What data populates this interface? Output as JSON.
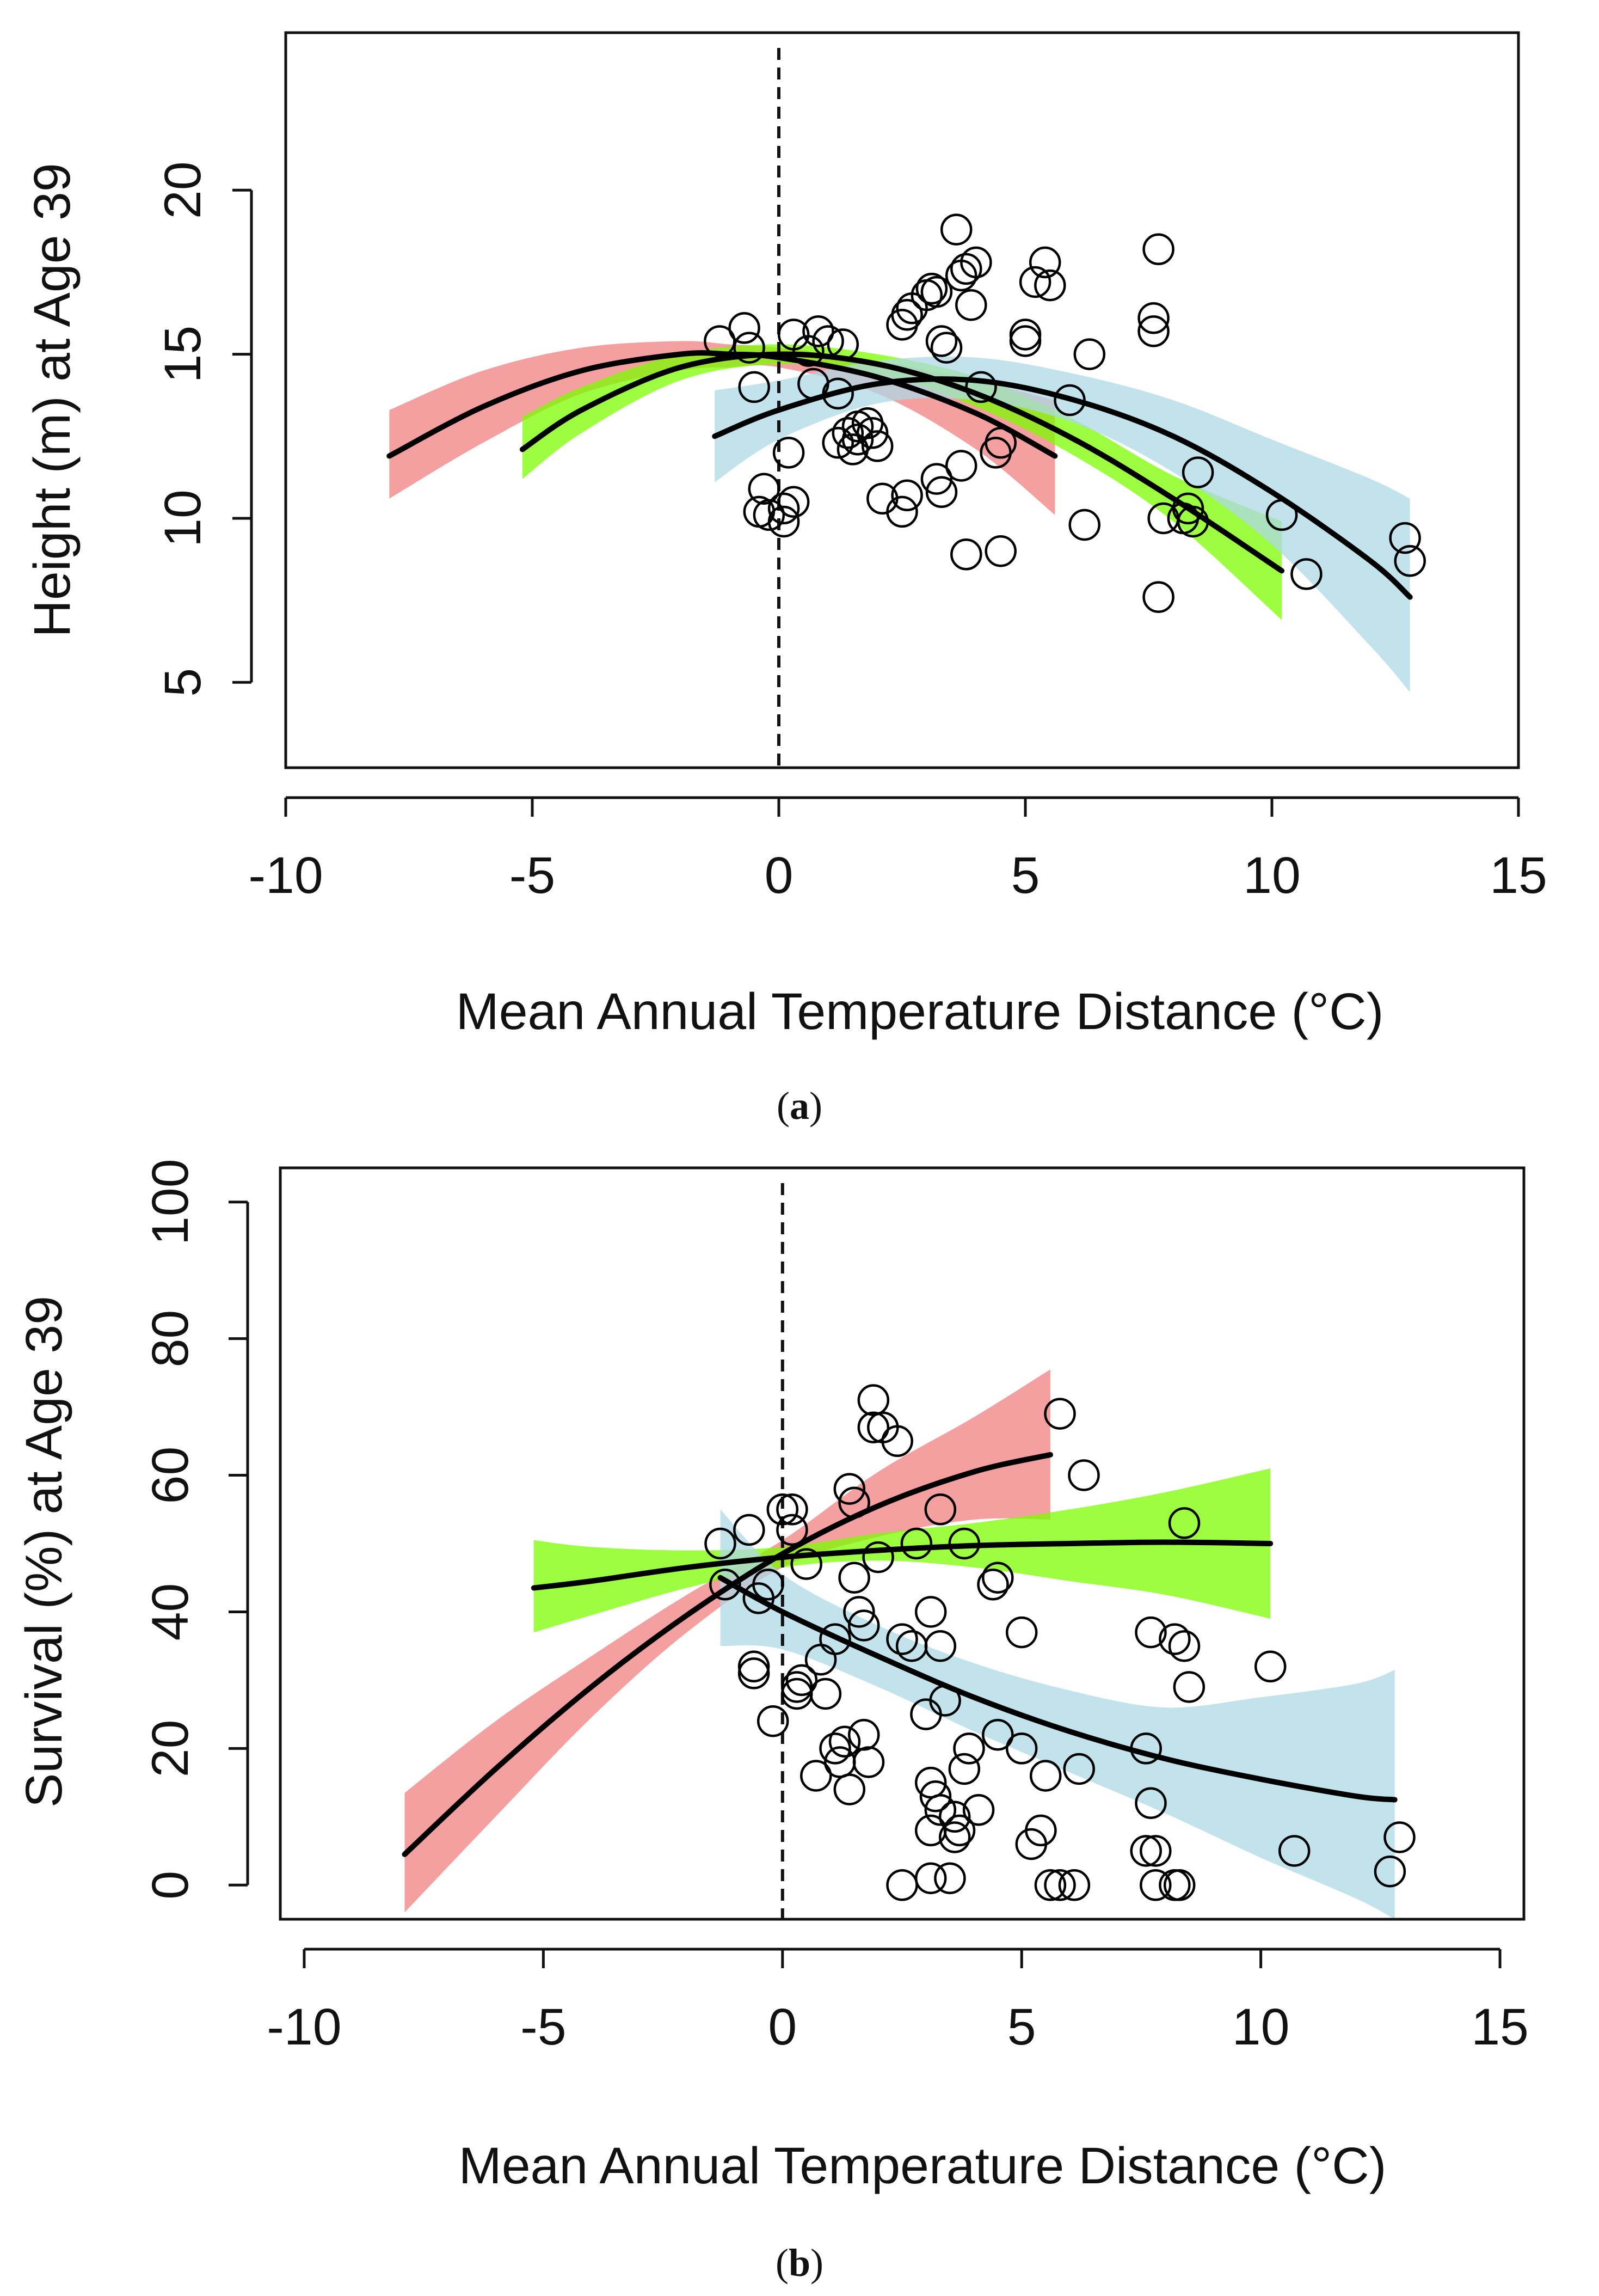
{
  "colors": {
    "red_band": "#F08080",
    "green_band": "#7CFC00",
    "blue_band": "#ADD8E6",
    "line": "#000000",
    "points": "#000000"
  },
  "chart_data": [
    {
      "id": "a",
      "panel_label_open": "(",
      "panel_label_letter": "a",
      "panel_label_close": ")",
      "type": "scatter",
      "xlabel": "Mean Annual Temperature Distance (°C)",
      "ylabel": "Height (m) at Age 39",
      "xlim": [
        -10,
        15
      ],
      "ylim": [
        2.4,
        24.8
      ],
      "xticks": [
        -10,
        -5,
        0,
        5,
        10,
        15
      ],
      "yticks": [
        5,
        10,
        15,
        20
      ],
      "xtick_labels": [
        "-10",
        "-5",
        "0",
        "5",
        "10",
        "15"
      ],
      "ytick_labels": [
        "5",
        "10",
        "15",
        "20"
      ],
      "reference_line_x": 0,
      "curves": [
        {
          "name": "red",
          "color": "#F08080",
          "x": [
            -7.9,
            -6,
            -4,
            -2,
            -1,
            0,
            2,
            4,
            5.6
          ],
          "y": [
            11.9,
            13.4,
            14.5,
            15.0,
            15.0,
            14.9,
            14.3,
            13.2,
            11.9
          ],
          "lower": [
            10.6,
            12.3,
            13.8,
            14.5,
            14.6,
            14.6,
            13.8,
            12.1,
            10.1
          ],
          "upper": [
            13.3,
            14.5,
            15.2,
            15.4,
            15.3,
            15.2,
            14.8,
            14.2,
            13.6
          ]
        },
        {
          "name": "green",
          "color": "#7CFC00",
          "x": [
            -5.2,
            -4,
            -2,
            0,
            2,
            4,
            6,
            8,
            10.2
          ],
          "y": [
            12.1,
            13.3,
            14.6,
            15.0,
            14.7,
            13.8,
            12.4,
            10.6,
            8.4
          ],
          "lower": [
            11.2,
            12.6,
            14.2,
            14.7,
            14.4,
            13.4,
            11.9,
            9.9,
            6.9
          ],
          "upper": [
            13.1,
            14.0,
            15.0,
            15.3,
            15.0,
            14.3,
            13.0,
            11.3,
            9.9
          ]
        },
        {
          "name": "blue",
          "color": "#ADD8E6",
          "x": [
            -1.3,
            0,
            2,
            4,
            6,
            8,
            10,
            12,
            12.8
          ],
          "y": [
            12.5,
            13.3,
            14.1,
            14.2,
            13.6,
            12.5,
            10.8,
            8.7,
            7.6
          ],
          "lower": [
            11.1,
            12.4,
            13.5,
            13.6,
            12.9,
            11.4,
            9.2,
            6.1,
            4.7
          ],
          "upper": [
            13.9,
            14.2,
            14.8,
            14.9,
            14.4,
            13.6,
            12.4,
            11.2,
            10.6
          ]
        }
      ],
      "points": [
        [
          -1.2,
          15.4
        ],
        [
          -0.7,
          15.8
        ],
        [
          -0.6,
          15.2
        ],
        [
          -0.5,
          14.0
        ],
        [
          -0.4,
          10.2
        ],
        [
          -0.3,
          10.9
        ],
        [
          -0.2,
          10.1
        ],
        [
          0.1,
          10.3
        ],
        [
          0.1,
          9.9
        ],
        [
          0.2,
          12.0
        ],
        [
          0.3,
          15.6
        ],
        [
          0.3,
          10.5
        ],
        [
          0.6,
          15.1
        ],
        [
          0.7,
          14.1
        ],
        [
          0.8,
          15.7
        ],
        [
          1.0,
          15.4
        ],
        [
          1.2,
          13.8
        ],
        [
          1.3,
          15.3
        ],
        [
          1.2,
          12.3
        ],
        [
          1.4,
          12.6
        ],
        [
          1.5,
          12.1
        ],
        [
          1.6,
          12.4
        ],
        [
          1.6,
          12.8
        ],
        [
          1.8,
          12.9
        ],
        [
          1.9,
          12.6
        ],
        [
          2.0,
          12.2
        ],
        [
          2.1,
          10.6
        ],
        [
          2.5,
          10.2
        ],
        [
          2.6,
          10.7
        ],
        [
          2.5,
          15.9
        ],
        [
          2.6,
          16.2
        ],
        [
          2.7,
          16.4
        ],
        [
          3.0,
          16.8
        ],
        [
          3.1,
          17.0
        ],
        [
          3.2,
          16.9
        ],
        [
          3.2,
          11.2
        ],
        [
          3.3,
          10.8
        ],
        [
          3.3,
          15.4
        ],
        [
          3.4,
          15.2
        ],
        [
          3.6,
          18.8
        ],
        [
          3.7,
          17.4
        ],
        [
          3.8,
          17.6
        ],
        [
          3.7,
          11.6
        ],
        [
          3.8,
          8.9
        ],
        [
          3.9,
          16.5
        ],
        [
          4.0,
          17.8
        ],
        [
          4.1,
          14.0
        ],
        [
          4.4,
          12.0
        ],
        [
          4.5,
          12.3
        ],
        [
          4.5,
          9.0
        ],
        [
          5.0,
          15.6
        ],
        [
          5.0,
          15.4
        ],
        [
          5.2,
          17.2
        ],
        [
          5.4,
          17.8
        ],
        [
          5.5,
          17.1
        ],
        [
          5.9,
          13.6
        ],
        [
          6.2,
          9.8
        ],
        [
          6.3,
          15.0
        ],
        [
          7.6,
          16.1
        ],
        [
          7.6,
          15.7
        ],
        [
          7.7,
          18.2
        ],
        [
          7.8,
          10.0
        ],
        [
          7.7,
          7.6
        ],
        [
          8.2,
          10.0
        ],
        [
          8.3,
          10.3
        ],
        [
          8.4,
          9.9
        ],
        [
          8.5,
          11.4
        ],
        [
          10.2,
          10.1
        ],
        [
          10.7,
          8.3
        ],
        [
          12.7,
          9.4
        ],
        [
          12.8,
          8.7
        ]
      ]
    },
    {
      "id": "b",
      "panel_label_open": "(",
      "panel_label_letter": "b",
      "panel_label_close": ")",
      "type": "scatter",
      "xlabel": "Mean Annual Temperature Distance (°C)",
      "ylabel": "Survival (%) at Age 39",
      "xlim": [
        -10.5,
        15.5
      ],
      "ylim": [
        -5,
        105
      ],
      "xticks": [
        -10,
        -5,
        0,
        5,
        10,
        15
      ],
      "yticks": [
        0,
        20,
        40,
        60,
        80,
        100
      ],
      "xtick_labels": [
        "-10",
        "-5",
        "0",
        "5",
        "10",
        "15"
      ],
      "ytick_labels": [
        "0",
        "20",
        "40",
        "60",
        "80",
        "100"
      ],
      "reference_line_x": 0,
      "curves": [
        {
          "name": "red",
          "color": "#F08080",
          "x": [
            -7.9,
            -6,
            -4,
            -2,
            0,
            2,
            4,
            5.6
          ],
          "y": [
            4.5,
            17.0,
            29.0,
            39.5,
            48.5,
            55.5,
            60.5,
            63.0
          ],
          "lower": [
            -4.0,
            10.0,
            24.5,
            37.0,
            46.5,
            51.0,
            53.5,
            53.5
          ],
          "upper": [
            13.5,
            24.0,
            33.5,
            42.5,
            50.5,
            60.5,
            68.5,
            75.5
          ]
        },
        {
          "name": "green",
          "color": "#7CFC00",
          "x": [
            -5.2,
            -4,
            -2,
            0,
            2,
            4,
            6,
            8,
            10.2
          ],
          "y": [
            43.5,
            44.5,
            46.5,
            48.0,
            49.0,
            49.7,
            50.0,
            50.2,
            50.0
          ],
          "lower": [
            37.0,
            39.5,
            43.5,
            46.5,
            47.5,
            46.5,
            44.5,
            42.5,
            39.0
          ],
          "upper": [
            50.5,
            49.5,
            49.0,
            49.5,
            51.5,
            53.0,
            55.0,
            57.5,
            61.0
          ]
        },
        {
          "name": "blue",
          "color": "#ADD8E6",
          "x": [
            -1.3,
            0,
            2,
            4,
            6,
            8,
            10,
            12,
            12.8
          ],
          "y": [
            45.0,
            40.0,
            33.5,
            27.5,
            22.5,
            18.5,
            15.5,
            13.0,
            12.5
          ],
          "lower": [
            35.0,
            34.5,
            29.0,
            22.5,
            16.5,
            10.5,
            4.0,
            -2.0,
            -5.0
          ],
          "upper": [
            55.0,
            45.5,
            38.0,
            32.5,
            28.5,
            26.0,
            27.5,
            29.5,
            31.5
          ]
        }
      ],
      "points": [
        [
          -1.3,
          50
        ],
        [
          -1.2,
          44
        ],
        [
          -0.7,
          52
        ],
        [
          -0.6,
          32
        ],
        [
          -0.6,
          31
        ],
        [
          -0.5,
          42
        ],
        [
          -0.3,
          44
        ],
        [
          -0.2,
          24
        ],
        [
          0.0,
          55
        ],
        [
          0.2,
          55
        ],
        [
          0.2,
          52
        ],
        [
          0.3,
          29
        ],
        [
          0.3,
          28
        ],
        [
          0.4,
          30
        ],
        [
          0.5,
          47
        ],
        [
          0.7,
          16
        ],
        [
          0.8,
          33
        ],
        [
          0.9,
          28
        ],
        [
          1.1,
          36
        ],
        [
          1.1,
          20
        ],
        [
          1.2,
          18
        ],
        [
          1.3,
          21
        ],
        [
          1.4,
          14
        ],
        [
          1.4,
          58
        ],
        [
          1.5,
          56
        ],
        [
          1.5,
          45
        ],
        [
          1.6,
          40
        ],
        [
          1.7,
          38
        ],
        [
          1.7,
          22
        ],
        [
          1.8,
          18
        ],
        [
          1.9,
          71
        ],
        [
          1.9,
          67
        ],
        [
          2.0,
          48
        ],
        [
          2.1,
          67
        ],
        [
          2.4,
          65
        ],
        [
          2.5,
          36
        ],
        [
          2.5,
          0
        ],
        [
          2.7,
          35
        ],
        [
          2.8,
          50
        ],
        [
          3.0,
          25
        ],
        [
          3.1,
          40
        ],
        [
          3.1,
          1
        ],
        [
          3.1,
          8
        ],
        [
          3.1,
          15
        ],
        [
          3.2,
          13
        ],
        [
          3.3,
          11
        ],
        [
          3.3,
          35
        ],
        [
          3.3,
          55
        ],
        [
          3.4,
          27
        ],
        [
          3.5,
          1
        ],
        [
          3.6,
          10
        ],
        [
          3.6,
          7
        ],
        [
          3.7,
          8
        ],
        [
          3.8,
          50
        ],
        [
          3.8,
          17
        ],
        [
          3.9,
          20
        ],
        [
          4.1,
          11
        ],
        [
          4.4,
          44
        ],
        [
          4.5,
          45
        ],
        [
          4.5,
          22
        ],
        [
          5.0,
          20
        ],
        [
          5.0,
          37
        ],
        [
          5.2,
          6
        ],
        [
          5.4,
          8
        ],
        [
          5.5,
          16
        ],
        [
          5.6,
          0
        ],
        [
          5.8,
          69
        ],
        [
          5.8,
          0
        ],
        [
          6.1,
          0
        ],
        [
          6.2,
          17
        ],
        [
          6.3,
          60
        ],
        [
          7.6,
          5
        ],
        [
          7.6,
          20
        ],
        [
          7.7,
          37
        ],
        [
          7.7,
          12
        ],
        [
          7.8,
          5
        ],
        [
          7.8,
          0
        ],
        [
          8.2,
          36
        ],
        [
          8.2,
          0
        ],
        [
          8.3,
          0
        ],
        [
          8.4,
          35
        ],
        [
          8.4,
          53
        ],
        [
          8.5,
          29
        ],
        [
          10.2,
          32
        ],
        [
          10.7,
          5
        ],
        [
          12.7,
          2
        ],
        [
          12.9,
          7
        ]
      ]
    }
  ]
}
